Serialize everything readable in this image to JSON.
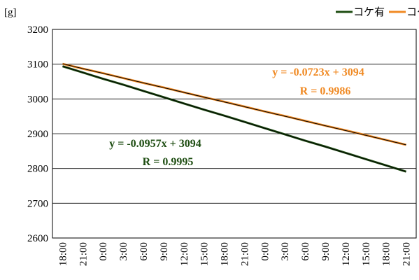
{
  "chart_data": {
    "type": "line",
    "y_label": "[g]",
    "categories": [
      "18:00",
      "21:00",
      "0:00",
      "3:00",
      "6:00",
      "9:00",
      "12:00",
      "15:00",
      "18:00",
      "21:00",
      "0:00",
      "3:00",
      "6:00",
      "9:00",
      "12:00",
      "15:00",
      "18:00",
      "21:00"
    ],
    "series": [
      {
        "name": "コケ有",
        "color": "#1e4d12",
        "values": [
          3094,
          3076,
          3058,
          3041,
          3023,
          3005,
          2987,
          2969,
          2952,
          2934,
          2916,
          2898,
          2880,
          2863,
          2845,
          2827,
          2809,
          2791
        ]
      },
      {
        "name": "コケ無",
        "color": "#f08a24",
        "values": [
          3101,
          3087,
          3074,
          3060,
          3046,
          3033,
          3019,
          3005,
          2992,
          2978,
          2964,
          2951,
          2937,
          2923,
          2910,
          2896,
          2882,
          2868
        ]
      }
    ],
    "annotations": [
      {
        "text": "y = -0.0957x + 3094",
        "color": "#1e4d12"
      },
      {
        "text": "R = 0.9995",
        "color": "#1e4d12"
      },
      {
        "text": "y = -0.0723x + 3094",
        "color": "#f08a24"
      },
      {
        "text": "R = 0.9986",
        "color": "#f08a24"
      }
    ],
    "ylim": [
      2600,
      3200
    ],
    "yticks": [
      2600,
      2700,
      2800,
      2900,
      3000,
      3100,
      3200
    ],
    "grid": true
  }
}
